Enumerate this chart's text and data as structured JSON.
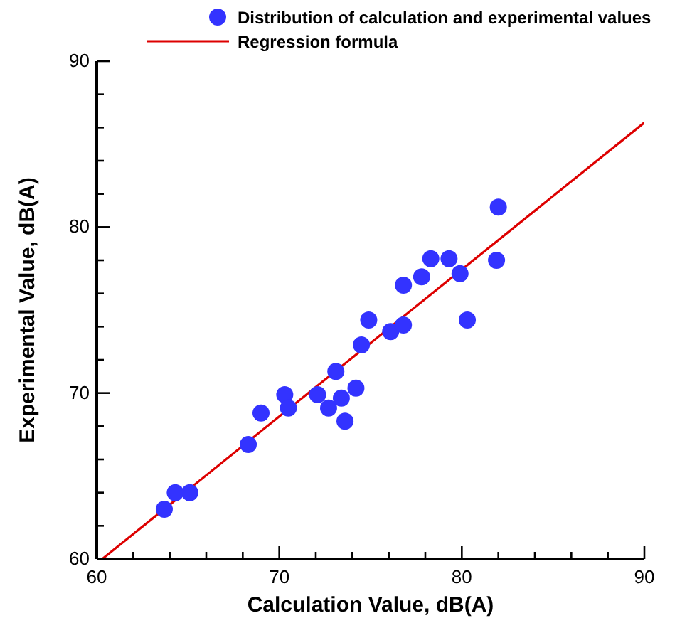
{
  "chart_data": {
    "type": "scatter",
    "xlabel": "Calculation Value, dB(A)",
    "ylabel": "Experimental Value, dB(A)",
    "xlim": [
      60,
      90
    ],
    "ylim": [
      60,
      90
    ],
    "xticks": [
      60,
      {
        "value": 62,
        "label": null
      },
      {
        "value": 64,
        "label": null
      },
      {
        "value": 66,
        "label": null
      },
      {
        "value": 68,
        "label": null
      },
      70,
      {
        "value": 72,
        "label": null
      },
      {
        "value": 74,
        "label": null
      },
      {
        "value": 76,
        "label": null
      },
      {
        "value": 78,
        "label": null
      },
      80,
      {
        "value": 82,
        "label": null
      },
      {
        "value": 84,
        "label": null
      },
      {
        "value": 86,
        "label": null
      },
      {
        "value": 88,
        "label": null
      },
      90
    ],
    "yticks": [
      60,
      {
        "value": 62,
        "label": null
      },
      {
        "value": 64,
        "label": null
      },
      {
        "value": 66,
        "label": null
      },
      {
        "value": 68,
        "label": null
      },
      70,
      {
        "value": 72,
        "label": null
      },
      {
        "value": 74,
        "label": null
      },
      {
        "value": 76,
        "label": null
      },
      {
        "value": 78,
        "label": null
      },
      80,
      {
        "value": 82,
        "label": null
      },
      {
        "value": 84,
        "label": null
      },
      {
        "value": 86,
        "label": null
      },
      {
        "value": 88,
        "label": null
      },
      90
    ],
    "grid": false,
    "legend": "top",
    "series": [
      {
        "name": "Distribution of calculation and experimental values",
        "marker": "circle",
        "color": "#3333ff",
        "x": [
          63.7,
          64.3,
          65.1,
          68.3,
          69.0,
          70.3,
          70.5,
          72.1,
          72.7,
          73.4,
          73.6,
          74.2,
          73.1,
          74.5,
          74.9,
          76.1,
          76.8,
          76.8,
          77.8,
          78.3,
          79.3,
          79.9,
          80.3,
          81.9,
          82.0
        ],
        "values": [
          63.0,
          64.0,
          64.0,
          66.9,
          68.8,
          69.9,
          69.1,
          69.9,
          69.1,
          69.7,
          68.3,
          70.3,
          71.3,
          72.9,
          74.4,
          73.7,
          74.1,
          76.5,
          77.0,
          78.1,
          78.1,
          77.2,
          74.4,
          78.0,
          81.2
        ]
      },
      {
        "name": "Regression formula",
        "type": "line",
        "color": "#dd0000",
        "line_style": "solid",
        "marker": "none",
        "x": [
          60.3,
          90
        ],
        "values": [
          60,
          86.3
        ]
      }
    ]
  }
}
